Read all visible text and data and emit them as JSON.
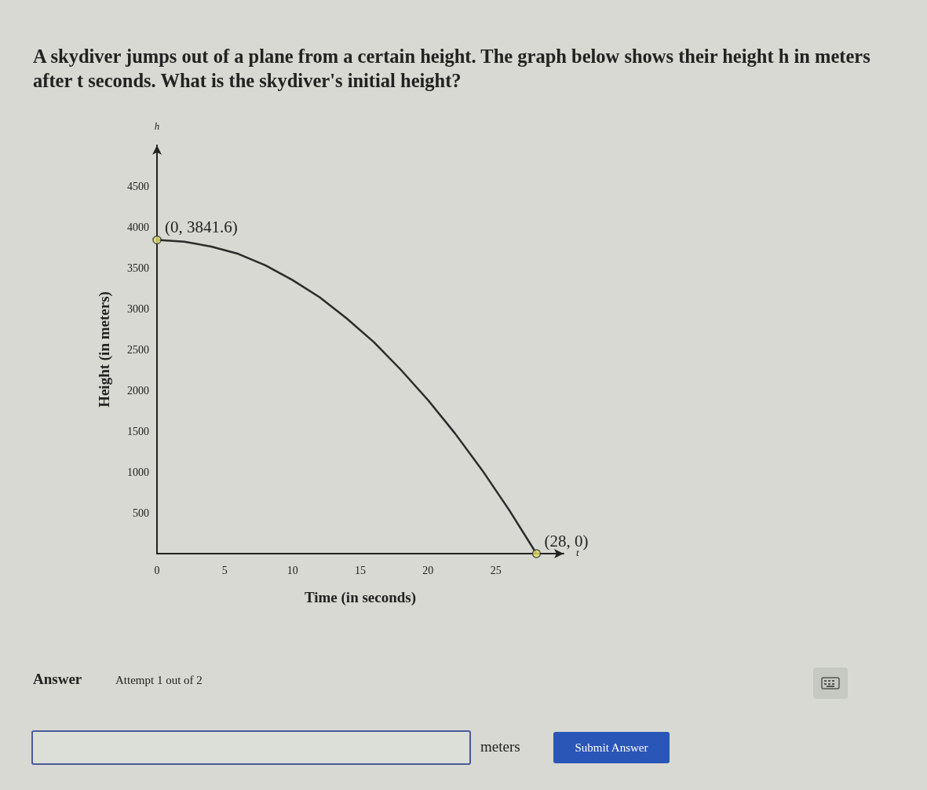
{
  "chart_data": {
    "type": "line",
    "title": "A skydiver jumps out of a plane from a certain height. The graph below shows their height h in meters after t seconds. What is the skydiver's initial height?",
    "xlabel": "Time (in seconds)",
    "ylabel": "Height (in meters)",
    "xlim": [
      0,
      30
    ],
    "xticks": [
      0,
      5,
      10,
      15,
      20,
      25
    ],
    "ylim": [
      0,
      5000
    ],
    "yticks": [
      500,
      1000,
      1500,
      2000,
      2500,
      3000,
      3500,
      4000,
      4500
    ],
    "grid": false,
    "series": [
      {
        "color": "#2b2b2b",
        "marker": "none",
        "line_style": "solid",
        "x": [
          0,
          2,
          4,
          6,
          8,
          10,
          12,
          14,
          16,
          18,
          20,
          22,
          24,
          26,
          28
        ],
        "values": [
          3841.6,
          3820,
          3760,
          3670,
          3530,
          3350,
          3140,
          2880,
          2590,
          2250,
          1880,
          1470,
          1020,
          530,
          0
        ]
      },
      {
        "type": "scatter",
        "color": "#e3df6a",
        "marker": "circle",
        "x": [
          0,
          28
        ],
        "values": [
          3841.6,
          0
        ]
      }
    ],
    "annotations": [
      "h",
      "t",
      {
        "text": "(0, 3841.6)",
        "x": 0,
        "y": 3841.6
      },
      {
        "text": "(28, 0)",
        "x": 28,
        "y": 0
      },
      "Answer",
      "Attempt 1 out of 2",
      "meters",
      "Submit Answer"
    ]
  }
}
